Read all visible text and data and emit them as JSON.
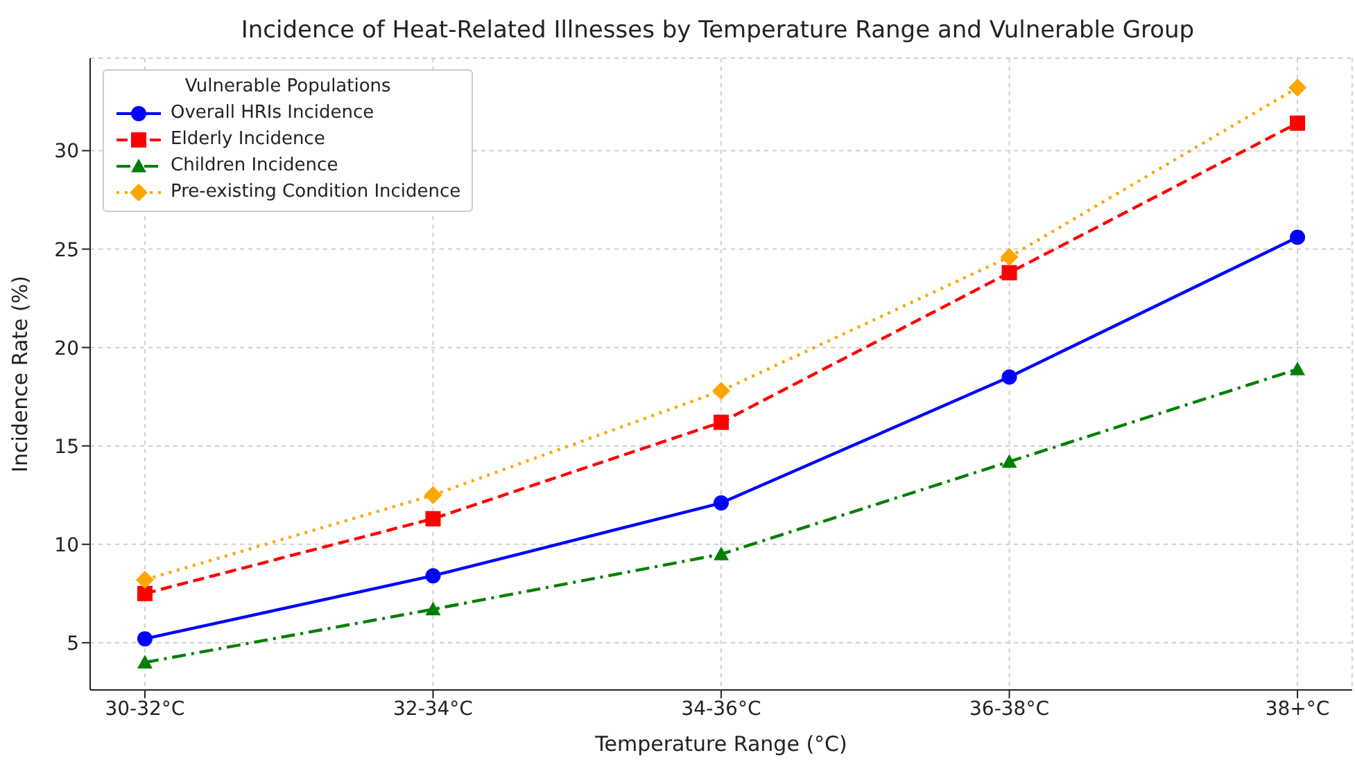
{
  "chart_data": {
    "type": "line",
    "title": "Incidence of Heat-Related Illnesses by Temperature Range and Vulnerable Group",
    "xlabel": "Temperature Range (°C)",
    "ylabel": "Incidence Rate (%)",
    "legend_title": "Vulnerable Populations",
    "categories": [
      "30-32°C",
      "32-34°C",
      "34-36°C",
      "36-38°C",
      "38+°C"
    ],
    "series": [
      {
        "name": "Overall HRIs Incidence",
        "color": "#0000ff",
        "marker": "circle",
        "line_style": "solid",
        "values": [
          5.2,
          8.4,
          12.1,
          18.5,
          25.6
        ]
      },
      {
        "name": "Elderly Incidence",
        "color": "#ff0000",
        "marker": "square",
        "line_style": "dashed",
        "values": [
          7.5,
          11.3,
          16.2,
          23.8,
          31.4
        ]
      },
      {
        "name": "Children Incidence",
        "color": "#008000",
        "marker": "triangle",
        "line_style": "dashdot",
        "values": [
          4.0,
          6.7,
          9.5,
          14.2,
          18.9
        ]
      },
      {
        "name": "Pre-existing Condition Incidence",
        "color": "#ffa500",
        "marker": "diamond",
        "line_style": "dotted",
        "values": [
          8.2,
          12.5,
          17.8,
          24.6,
          33.2
        ]
      }
    ],
    "ylim": [
      2.6,
      34.7
    ],
    "yticks": [
      5,
      10,
      15,
      20,
      25,
      30
    ],
    "grid": true,
    "legend": "top left"
  }
}
